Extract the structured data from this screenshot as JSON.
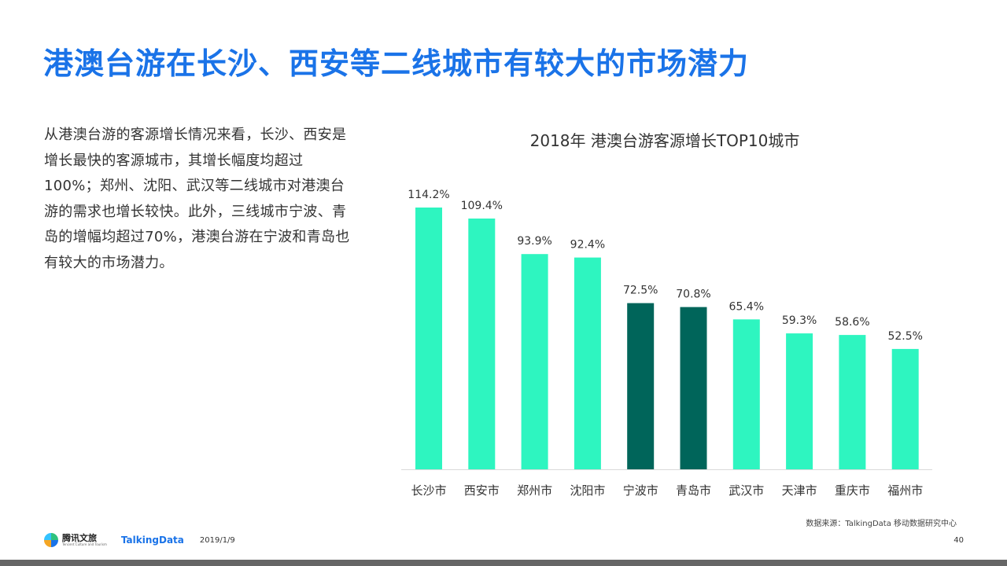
{
  "page": {
    "title": "港澳台游在长沙、西安等二线城市有较大的市场潜力",
    "description": "从港澳台游的客源增长情况来看，长沙、西安是增长最快的客源城市，其增长幅度均超过100%；郑州、沈阳、武汉等二线城市对港澳台游的需求也增长较快。此外，三线城市宁波、青岛的增幅均超过70%，港澳台游在宁波和青岛也有较大的市场潜力。",
    "source": "数据来源：TalkingData 移动数据研究中心",
    "page_number": "40"
  },
  "footer": {
    "logo_tencent": "腾讯文旅",
    "logo_tencent_sub": "Tencent Culture and Tourism",
    "logo_talkingdata": "TalkingData",
    "date": "2019/1/9"
  },
  "colors": {
    "title": "#1a73e8",
    "bar_default": "#2ef5c0",
    "bar_highlight": "#00655a",
    "bottom_bar": "#666666"
  },
  "chart_data": {
    "type": "bar",
    "title": "2018年 港澳台游客源增长TOP10城市",
    "categories": [
      "长沙市",
      "西安市",
      "郑州市",
      "沈阳市",
      "宁波市",
      "青岛市",
      "武汉市",
      "天津市",
      "重庆市",
      "福州市"
    ],
    "values": [
      114.2,
      109.4,
      93.9,
      92.4,
      72.5,
      70.8,
      65.4,
      59.3,
      58.6,
      52.5
    ],
    "labels": [
      "114.2%",
      "109.4%",
      "93.9%",
      "92.4%",
      "72.5%",
      "70.8%",
      "65.4%",
      "59.3%",
      "58.6%",
      "52.5%"
    ],
    "highlighted": [
      "宁波市",
      "青岛市"
    ],
    "unit": "%",
    "ylim": [
      0,
      120
    ],
    "xlabel": "",
    "ylabel": "",
    "grid": false,
    "legend": "none"
  }
}
